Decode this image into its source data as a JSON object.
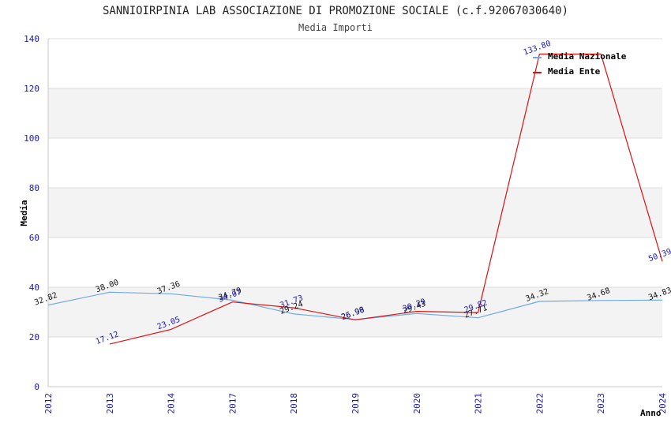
{
  "chart_data": {
    "type": "line",
    "title": "SANNIOIRPINIA LAB ASSOCIAZIONE DI PROMOZIONE SOCIALE (c.f.92067030640)",
    "subtitle": "Media Importi",
    "xlabel": "Anno",
    "ylabel": "Media",
    "ylim": [
      0,
      140
    ],
    "yticks": [
      0,
      20,
      40,
      60,
      80,
      100,
      120,
      140
    ],
    "categories": [
      "2012",
      "2013",
      "2014",
      "2017",
      "2018",
      "2019",
      "2020",
      "2021",
      "2022",
      "2023",
      "2024"
    ],
    "grid": true,
    "legend_position": "top-right",
    "series": [
      {
        "name": "Media Nazionale",
        "color": "#6fa8e8",
        "values": [
          32.82,
          38.0,
          37.36,
          34.79,
          29.24,
          26.98,
          29.43,
          27.71,
          34.32,
          34.68,
          34.83
        ],
        "labels": [
          "32.82",
          "38.00",
          "37.36",
          "34.79",
          "29.24",
          "26.98",
          "29.43",
          "27.71",
          "34.32",
          "34.68",
          "34.83"
        ]
      },
      {
        "name": "Media Ente",
        "color": "#dd1111",
        "values": [
          null,
          17.12,
          23.05,
          34.07,
          31.73,
          26.9,
          30.29,
          29.82,
          133.8,
          133.8,
          50.39
        ],
        "labels": [
          null,
          "17.12",
          "23.05",
          "34.07",
          "31.73",
          "26.90",
          "30.29",
          "29.82",
          "133.80",
          null,
          "50.39"
        ]
      }
    ]
  }
}
